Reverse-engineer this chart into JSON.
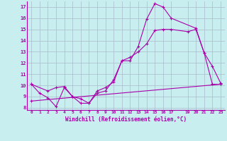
{
  "xlabel": "Windchill (Refroidissement éolien,°C)",
  "bg_color": "#c8eef0",
  "line_color": "#aa00aa",
  "grid_color": "#aabbcc",
  "xlim": [
    -0.5,
    23.5
  ],
  "ylim": [
    7.8,
    17.5
  ],
  "xticks": [
    0,
    1,
    2,
    3,
    4,
    5,
    6,
    7,
    8,
    9,
    10,
    11,
    12,
    13,
    14,
    15,
    16,
    17,
    19,
    20,
    21,
    22,
    23
  ],
  "yticks": [
    8,
    9,
    10,
    11,
    12,
    13,
    14,
    15,
    16,
    17
  ],
  "line1_x": [
    0,
    1,
    2,
    3,
    4,
    5,
    6,
    7,
    8,
    9,
    10,
    11,
    12,
    13,
    14,
    15,
    16,
    17,
    20,
    21,
    22,
    23
  ],
  "line1_y": [
    10.1,
    9.3,
    8.9,
    8.1,
    9.8,
    9.0,
    8.4,
    8.4,
    9.5,
    9.8,
    10.3,
    12.2,
    12.2,
    13.5,
    15.9,
    17.3,
    17.0,
    16.0,
    15.1,
    12.9,
    10.1,
    10.1
  ],
  "line2_x": [
    0,
    2,
    3,
    4,
    5,
    6,
    7,
    8,
    9,
    10,
    11,
    12,
    13,
    14,
    15,
    16,
    17,
    19,
    20,
    21,
    22,
    23
  ],
  "line2_y": [
    10.1,
    9.5,
    9.8,
    9.9,
    9.0,
    8.8,
    8.4,
    9.3,
    9.5,
    10.5,
    12.2,
    12.5,
    13.0,
    13.7,
    14.9,
    15.0,
    15.0,
    14.8,
    15.0,
    12.9,
    11.7,
    10.2
  ],
  "line3_x": [
    0,
    23
  ],
  "line3_y": [
    8.6,
    10.1
  ]
}
